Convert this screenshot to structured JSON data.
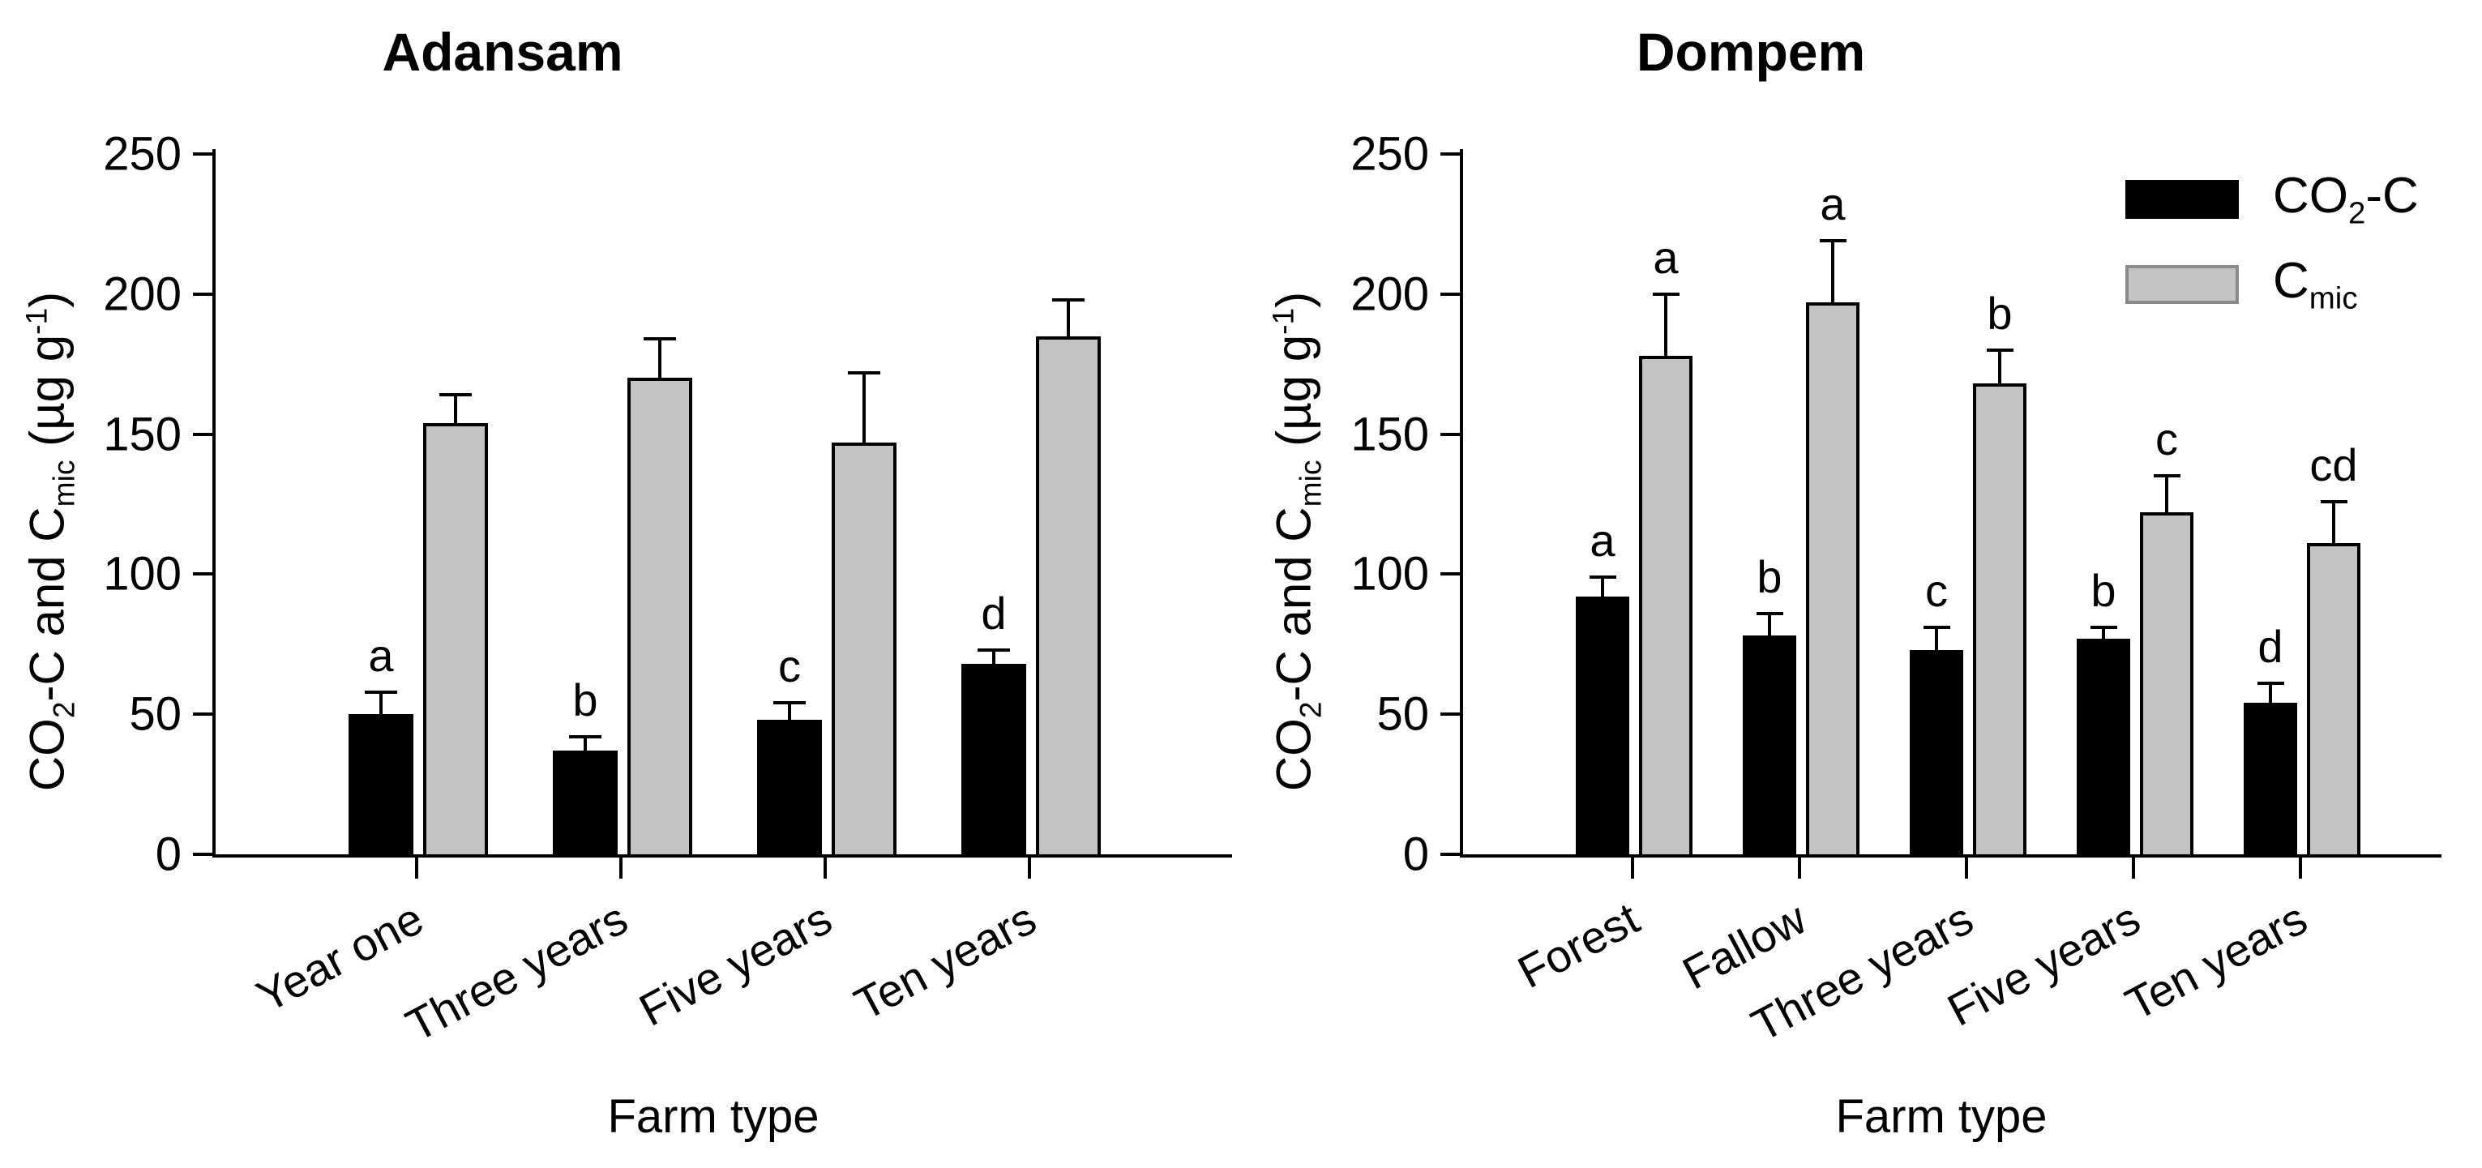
{
  "figure": {
    "background": "#ffffff",
    "axis_color": "#000000",
    "bar_black": "#000000",
    "bar_gray": "#c3c3c3"
  },
  "ylabel_parts": {
    "p1": "CO",
    "s1": "2",
    "p2": "-C and C",
    "s2": "mic",
    "p3": " (µg g",
    "sup1": "-1",
    "p4": ")"
  },
  "legend": {
    "items": [
      {
        "name": "CO2-C",
        "label_main": "CO",
        "label_sub": "2",
        "label_suffix": "-C",
        "color": "#000000",
        "border": "#000000"
      },
      {
        "name": "Cmic",
        "label_main": "C",
        "label_sub": "mic",
        "label_suffix": "",
        "color": "#c3c3c3",
        "border": "#8a8a8a"
      }
    ]
  },
  "chart_data": [
    {
      "type": "bar",
      "title": "Adansam",
      "xlabel": "Farm type",
      "ylabel": "CO2-C and Cmic (ug g-1)",
      "ylim": [
        0,
        250
      ],
      "yticks": [
        0,
        50,
        100,
        150,
        200,
        250
      ],
      "categories": [
        "Year one",
        "Three years",
        "Five years",
        "Ten years"
      ],
      "series": [
        {
          "name": "CO2-C",
          "color": "#000000",
          "values": [
            50,
            37,
            48,
            68
          ],
          "errors": [
            8,
            5,
            6,
            5
          ],
          "letters": [
            "a",
            "b",
            "c",
            "d"
          ]
        },
        {
          "name": "Cmic",
          "color": "#c3c3c3",
          "values": [
            154,
            170,
            147,
            185
          ],
          "errors": [
            10,
            14,
            25,
            13
          ],
          "letters": [
            "",
            "",
            "",
            ""
          ]
        }
      ],
      "legend_visible": false
    },
    {
      "type": "bar",
      "title": "Dompem",
      "xlabel": "Farm type",
      "ylabel": "CO2-C and Cmic (ug g-1)",
      "ylim": [
        0,
        250
      ],
      "yticks": [
        0,
        50,
        100,
        150,
        200,
        250
      ],
      "categories": [
        "Forest",
        "Fallow",
        "Three years",
        "Five years",
        "Ten years"
      ],
      "series": [
        {
          "name": "CO2-C",
          "color": "#000000",
          "values": [
            92,
            78,
            73,
            77,
            54
          ],
          "errors": [
            7,
            8,
            8,
            4,
            7
          ],
          "letters": [
            "a",
            "b",
            "c",
            "b",
            "d"
          ]
        },
        {
          "name": "Cmic",
          "color": "#c3c3c3",
          "values": [
            178,
            197,
            168,
            122,
            111
          ],
          "errors": [
            22,
            22,
            12,
            13,
            15
          ],
          "letters": [
            "a",
            "a",
            "b",
            "c",
            "cd"
          ]
        }
      ],
      "legend_visible": true
    }
  ]
}
